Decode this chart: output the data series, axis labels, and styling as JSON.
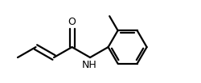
{
  "bg_color": "#ffffff",
  "line_color": "#000000",
  "line_width": 1.6,
  "BL": 26,
  "ring_r": 24,
  "dbo_chain": 3.2,
  "dbo_ring": 3.0,
  "dbo_carbonyl": 3.0,
  "O_label": "O",
  "NH_label": "NH",
  "label_fontsize": 9,
  "xlim": [
    0,
    250
  ],
  "ylim": [
    0,
    104
  ]
}
